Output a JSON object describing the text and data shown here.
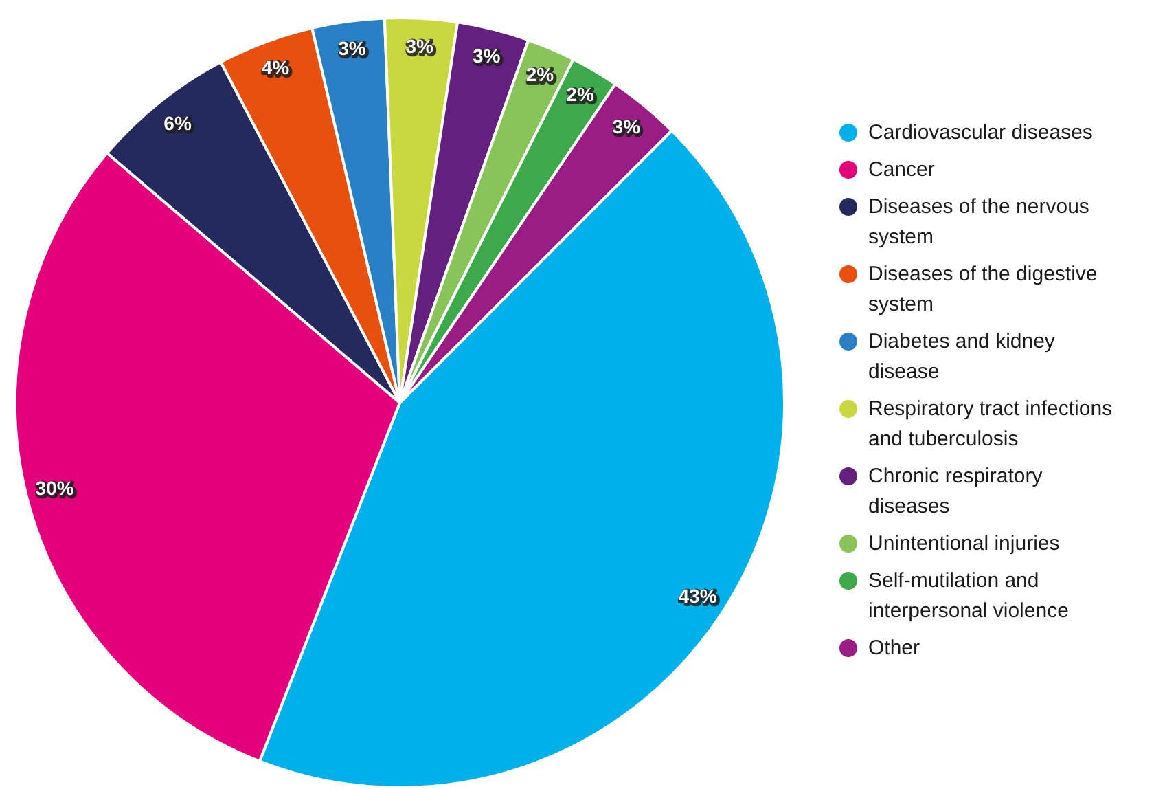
{
  "chart_data": {
    "type": "pie",
    "categories": [
      "Cardiovascular diseases",
      "Cancer",
      "Diseases of the nervous system",
      "Diseases of the digestive system",
      "Diabetes and kidney disease",
      "Respiratory tract infections and tuberculosis",
      "Chronic respiratory diseases",
      "Unintentional injuries",
      "Self-mutilation and interpersonal violence",
      "Other"
    ],
    "values": [
      43,
      30,
      6,
      4,
      3,
      3,
      3,
      2,
      2,
      3
    ],
    "value_labels": [
      "43%",
      "30%",
      "6%",
      "4%",
      "3%",
      "3%",
      "3%",
      "2%",
      "2%",
      "3%"
    ],
    "colors": [
      "#00b0e8",
      "#e3007a",
      "#252a5e",
      "#e8500e",
      "#2a80c4",
      "#c9d841",
      "#63207f",
      "#88c45a",
      "#3caa4a",
      "#9a1d84"
    ],
    "legend": "right"
  }
}
